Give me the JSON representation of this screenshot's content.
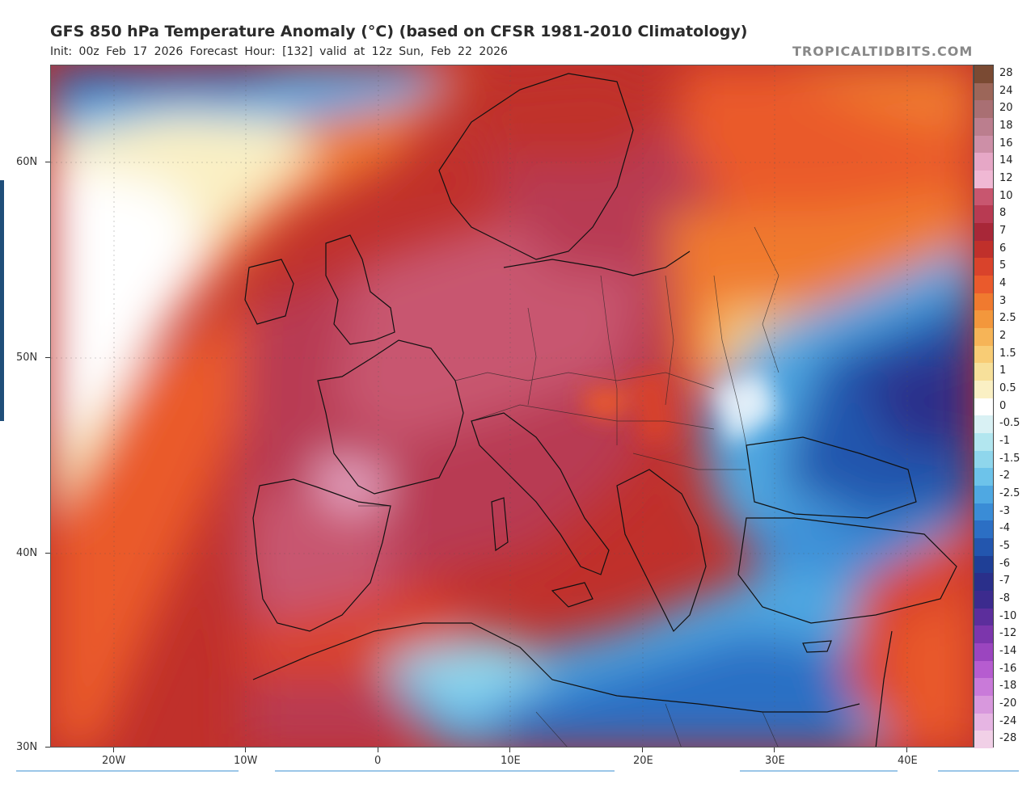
{
  "header": {
    "title": "GFS 850 hPa Temperature Anomaly (°C) (based on CFSR 1981-2010 Climatology)",
    "subtitle": "Init: 00z Feb 17 2026   Forecast Hour: [132]   valid at 12z Sun, Feb 22 2026",
    "site": "TROPICALTIDBITS.COM"
  },
  "map": {
    "lat_labels": [
      "60N",
      "50N",
      "40N",
      "30N"
    ],
    "lon_labels": [
      "20W",
      "10W",
      "0",
      "10E",
      "20E",
      "30E",
      "40E"
    ],
    "lat_values": [
      60,
      50,
      40,
      30
    ],
    "lon_values": [
      -20,
      -10,
      0,
      10,
      20,
      30,
      40
    ],
    "lat_range": [
      30,
      65
    ],
    "lon_range": [
      -25,
      45
    ]
  },
  "colorbar": {
    "labels": [
      "28",
      "24",
      "20",
      "18",
      "16",
      "14",
      "12",
      "10",
      "8",
      "7",
      "6",
      "5",
      "4",
      "3",
      "2.5",
      "2",
      "1.5",
      "1",
      "0.5",
      "0",
      "-0.5",
      "-1",
      "-1.5",
      "-2",
      "-2.5",
      "-3",
      "-4",
      "-5",
      "-6",
      "-7",
      "-8",
      "-10",
      "-12",
      "-14",
      "-16",
      "-18",
      "-20",
      "-24",
      "-28"
    ],
    "colors": [
      "#7a4a33",
      "#9c6659",
      "#a96f73",
      "#bb7e8e",
      "#cd8fa7",
      "#e6a7c6",
      "#f0b8d4",
      "#c8566f",
      "#b83a52",
      "#a82738",
      "#c0302b",
      "#d9432b",
      "#ea5a2c",
      "#f07a2f",
      "#f3973c",
      "#f6b457",
      "#f8cc75",
      "#f7e09a",
      "#faf0c4",
      "#ffffff",
      "#d9f1f4",
      "#b2e6ef",
      "#8fd6ec",
      "#6dc3ea",
      "#4fa8e2",
      "#3a8cd6",
      "#2c6fc4",
      "#2356ae",
      "#1f3f96",
      "#2a2f8a",
      "#3c2b8e",
      "#5c2e9c",
      "#7c36ac",
      "#9b45bf",
      "#b65cd0",
      "#c97ad9",
      "#d898dd",
      "#e6b5e3",
      "#f1d0e7"
    ]
  }
}
